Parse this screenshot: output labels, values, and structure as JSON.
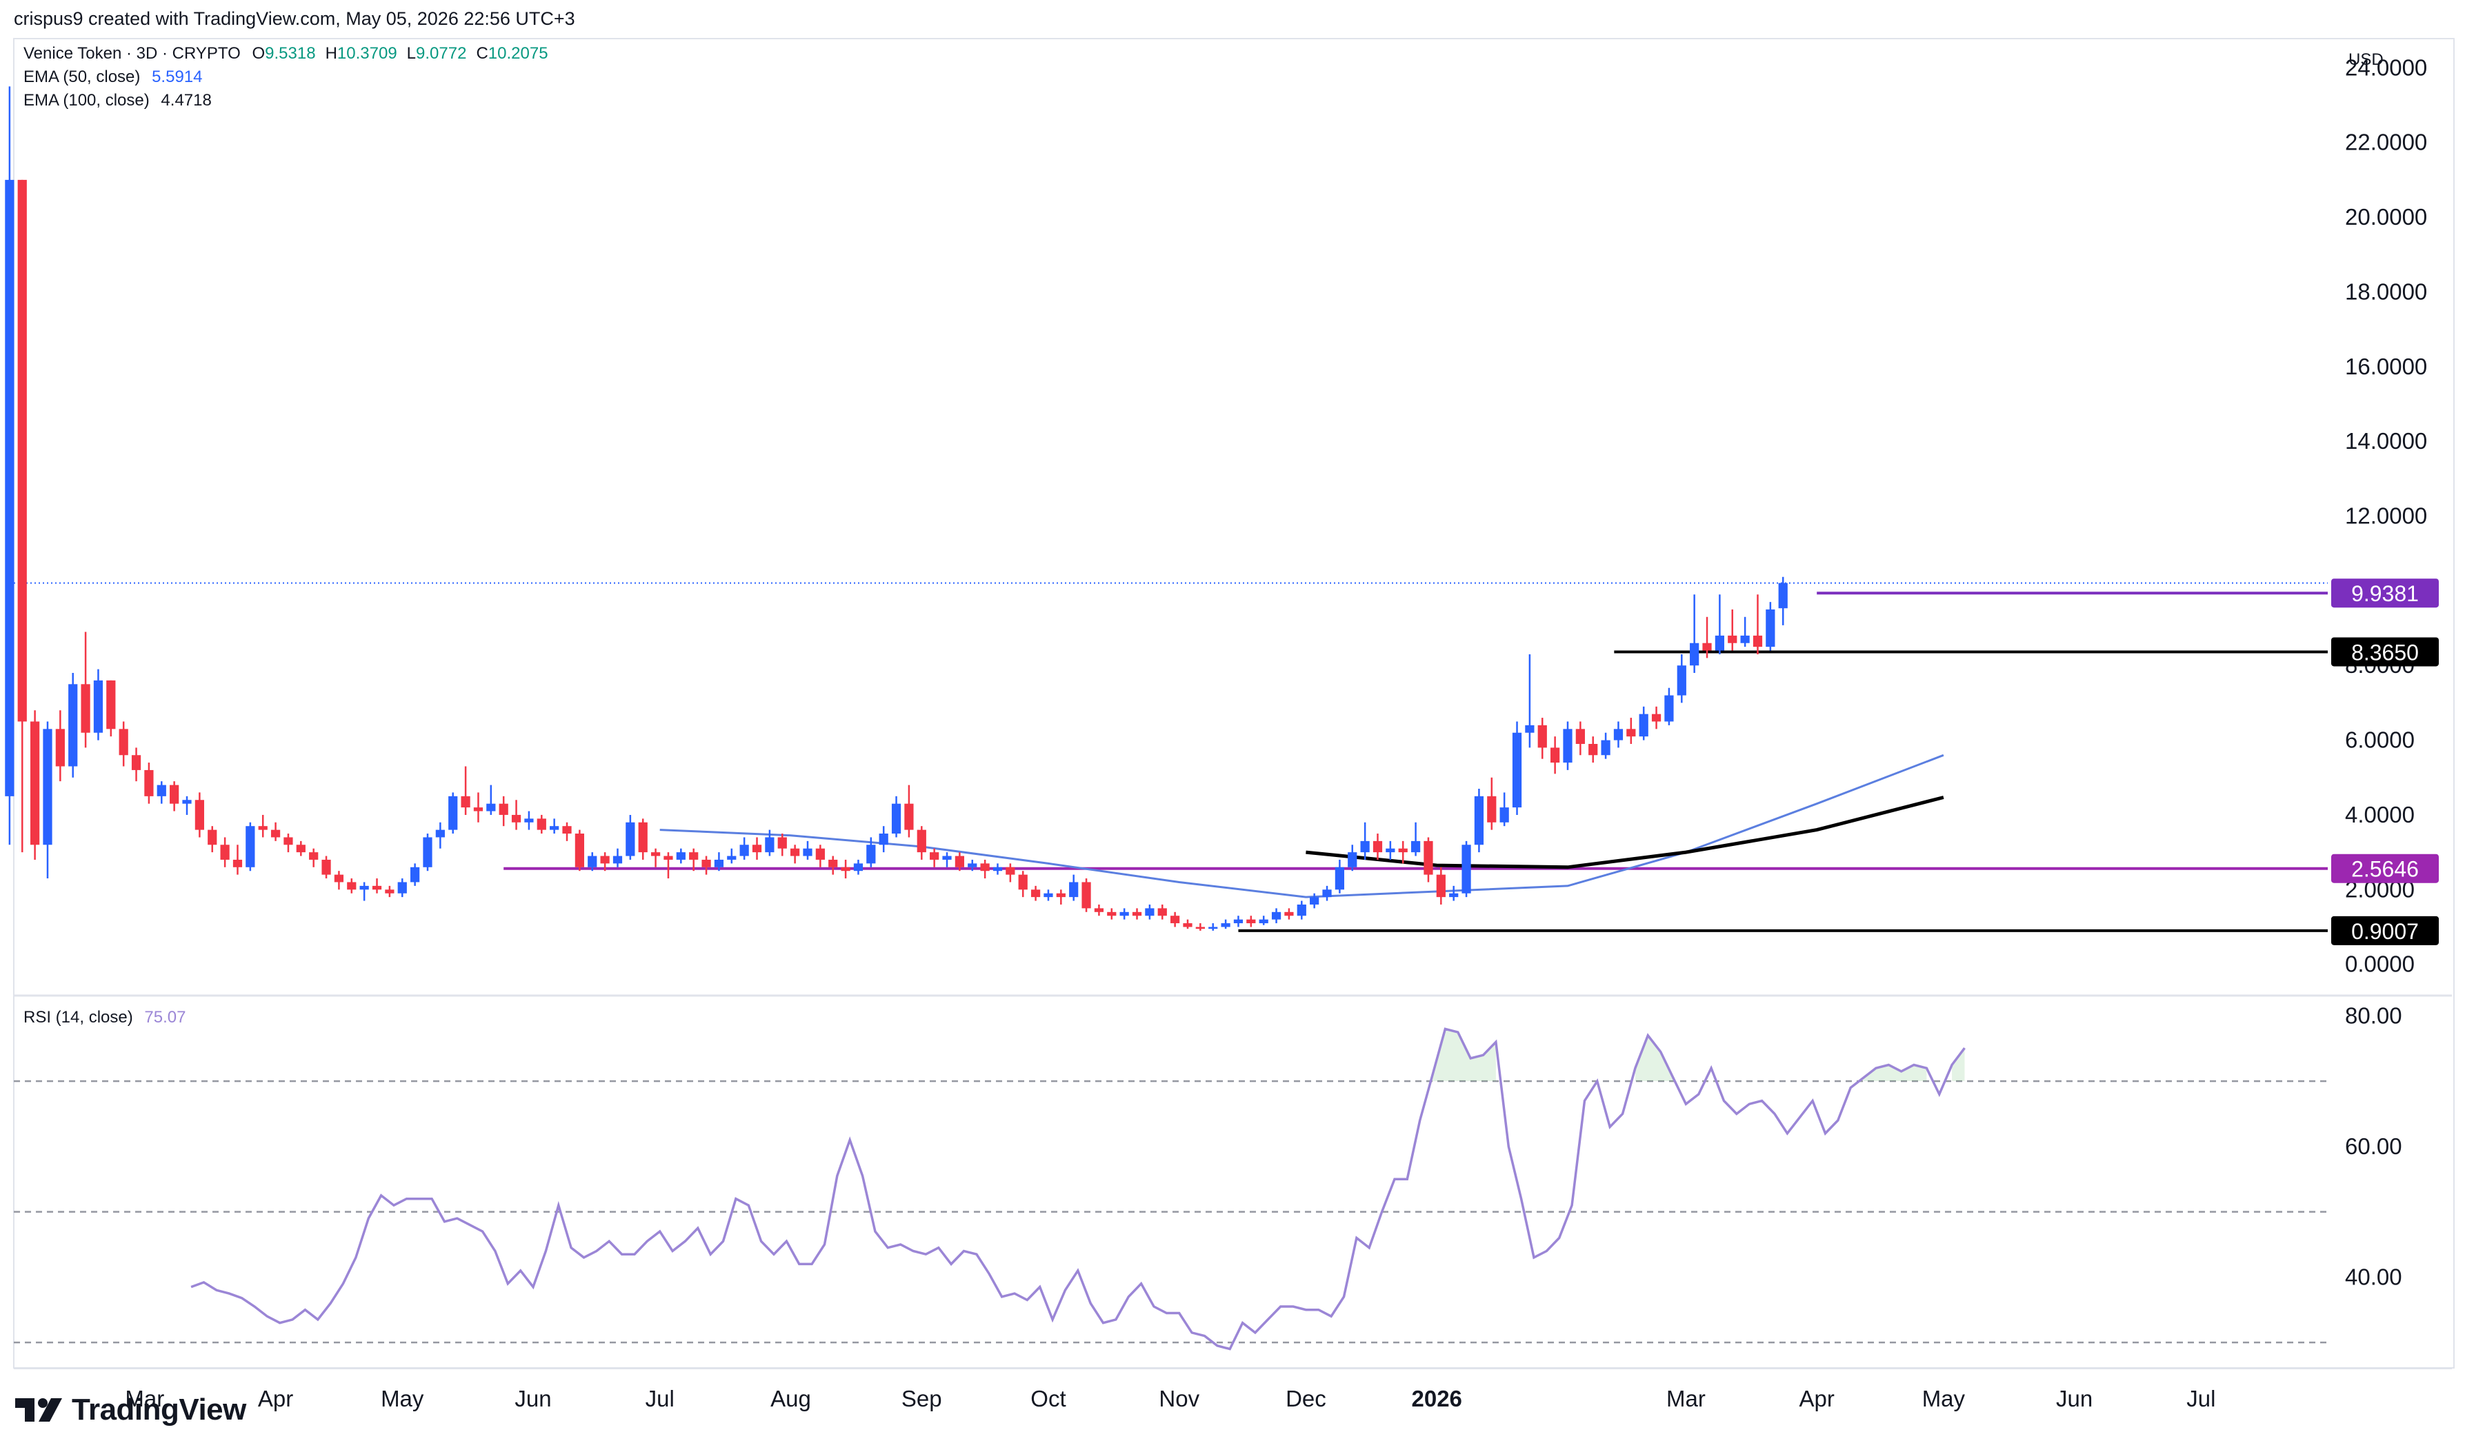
{
  "header": {
    "created_by": "crispus9 created with TradingView.com, May 05, 2026 22:56 UTC+3"
  },
  "legend": {
    "symbol": "Venice Token · 3D · CRYPTO",
    "ohlc": [
      {
        "key": "O",
        "value": "9.5318"
      },
      {
        "key": "H",
        "value": "10.3709"
      },
      {
        "key": "L",
        "value": "9.0772"
      },
      {
        "key": "C",
        "value": "10.2075"
      }
    ],
    "ema50_label": "EMA (50, close)",
    "ema50_value": "5.5914",
    "ema100_label": "EMA (100, close)",
    "ema100_value": "4.4718",
    "rsi_label": "RSI (14, close)",
    "rsi_value": "75.07"
  },
  "colors": {
    "up": "#2962ff",
    "down": "#f23645",
    "ema50": "#5b7fe0",
    "ema100": "#000000",
    "rsi": "#9b86d6",
    "resistance": "#7b2fbe",
    "support_purple": "#9c27b0",
    "support_black": "#000000",
    "ohlc_text": "#089981",
    "ema50_text": "#2962ff"
  },
  "footer": {
    "brand": "TradingView"
  },
  "chart_data": [
    {
      "type": "candlestick",
      "currency": "USD",
      "ylim": [
        -0.8,
        24.8
      ],
      "ytick_labels": [
        "24.0000",
        "22.0000",
        "20.0000",
        "18.0000",
        "16.0000",
        "14.0000",
        "12.0000",
        "10.0000",
        "8.0000",
        "6.0000",
        "4.0000",
        "2.0000",
        "0.0000"
      ],
      "yticks": [
        24,
        22,
        20,
        18,
        16,
        14,
        12,
        10,
        8,
        6,
        4,
        2,
        0
      ],
      "x_labels": [
        "Mar",
        "Apr",
        "May",
        "Jun",
        "Jul",
        "Aug",
        "Sep",
        "Oct",
        "Nov",
        "Dec",
        "2026",
        "Mar",
        "Apr",
        "May",
        "Jun",
        "Jul"
      ],
      "x_label_dates": [
        "2025-03-01",
        "2025-04-01",
        "2025-05-01",
        "2025-06-01",
        "2025-07-01",
        "2025-08-01",
        "2025-09-01",
        "2025-10-01",
        "2025-11-01",
        "2025-12-01",
        "2026-01-01",
        "2026-03-01",
        "2026-04-01",
        "2026-05-01",
        "2026-06-01",
        "2026-07-01"
      ],
      "x_domain": [
        "2025-01-29",
        "2026-07-31"
      ],
      "bold_x_label": "2026",
      "candle_period_days": 3,
      "first_candle_date": "2025-01-28",
      "candles": [
        [
          4.5,
          21.0,
          23.5,
          3.2
        ],
        [
          21.0,
          6.5,
          21.0,
          3.0
        ],
        [
          6.5,
          3.2,
          6.8,
          2.8
        ],
        [
          3.2,
          6.3,
          6.5,
          2.3
        ],
        [
          6.3,
          5.3,
          6.8,
          4.9
        ],
        [
          5.3,
          7.5,
          7.8,
          5.0
        ],
        [
          7.5,
          6.2,
          8.9,
          5.8
        ],
        [
          6.2,
          7.6,
          7.9,
          6.0
        ],
        [
          7.6,
          6.3,
          7.6,
          6.1
        ],
        [
          6.3,
          5.6,
          6.5,
          5.3
        ],
        [
          5.6,
          5.2,
          5.8,
          4.9
        ],
        [
          5.2,
          4.5,
          5.4,
          4.3
        ],
        [
          4.5,
          4.8,
          4.9,
          4.3
        ],
        [
          4.8,
          4.3,
          4.9,
          4.1
        ],
        [
          4.3,
          4.4,
          4.5,
          4.0
        ],
        [
          4.4,
          3.6,
          4.6,
          3.4
        ],
        [
          3.6,
          3.2,
          3.7,
          3.0
        ],
        [
          3.2,
          2.8,
          3.4,
          2.6
        ],
        [
          2.8,
          2.6,
          3.2,
          2.4
        ],
        [
          2.6,
          3.7,
          3.8,
          2.5
        ],
        [
          3.7,
          3.6,
          4.0,
          3.4
        ],
        [
          3.6,
          3.4,
          3.8,
          3.3
        ],
        [
          3.4,
          3.2,
          3.5,
          3.0
        ],
        [
          3.2,
          3.0,
          3.3,
          2.9
        ],
        [
          3.0,
          2.8,
          3.1,
          2.6
        ],
        [
          2.8,
          2.4,
          2.9,
          2.3
        ],
        [
          2.4,
          2.2,
          2.5,
          2.0
        ],
        [
          2.2,
          2.0,
          2.3,
          1.9
        ],
        [
          2.0,
          2.1,
          2.2,
          1.7
        ],
        [
          2.1,
          2.0,
          2.3,
          1.9
        ],
        [
          2.0,
          1.9,
          2.1,
          1.8
        ],
        [
          1.9,
          2.2,
          2.3,
          1.8
        ],
        [
          2.2,
          2.6,
          2.7,
          2.1
        ],
        [
          2.6,
          3.4,
          3.5,
          2.5
        ],
        [
          3.4,
          3.6,
          3.8,
          3.1
        ],
        [
          3.6,
          4.5,
          4.6,
          3.5
        ],
        [
          4.5,
          4.2,
          5.3,
          4.0
        ],
        [
          4.2,
          4.1,
          4.6,
          3.8
        ],
        [
          4.1,
          4.3,
          4.8,
          4.0
        ],
        [
          4.3,
          4.0,
          4.5,
          3.7
        ],
        [
          4.0,
          3.8,
          4.4,
          3.6
        ],
        [
          3.8,
          3.9,
          4.1,
          3.6
        ],
        [
          3.9,
          3.6,
          4.0,
          3.5
        ],
        [
          3.6,
          3.7,
          3.9,
          3.5
        ],
        [
          3.7,
          3.5,
          3.8,
          3.3
        ],
        [
          3.5,
          2.6,
          3.6,
          2.5
        ],
        [
          2.6,
          2.9,
          3.0,
          2.5
        ],
        [
          2.9,
          2.7,
          3.0,
          2.5
        ],
        [
          2.7,
          2.9,
          3.1,
          2.6
        ],
        [
          2.9,
          3.8,
          4.0,
          2.8
        ],
        [
          3.8,
          3.0,
          3.9,
          2.8
        ],
        [
          3.0,
          2.9,
          3.1,
          2.6
        ],
        [
          2.9,
          2.8,
          3.0,
          2.3
        ],
        [
          2.8,
          3.0,
          3.1,
          2.7
        ],
        [
          3.0,
          2.8,
          3.1,
          2.5
        ],
        [
          2.8,
          2.6,
          2.9,
          2.4
        ],
        [
          2.6,
          2.8,
          3.0,
          2.5
        ],
        [
          2.8,
          2.9,
          3.1,
          2.7
        ],
        [
          2.9,
          3.2,
          3.4,
          2.8
        ],
        [
          3.2,
          3.0,
          3.4,
          2.8
        ],
        [
          3.0,
          3.4,
          3.6,
          2.9
        ],
        [
          3.4,
          3.1,
          3.5,
          2.9
        ],
        [
          3.1,
          2.9,
          3.2,
          2.7
        ],
        [
          2.9,
          3.1,
          3.3,
          2.8
        ],
        [
          3.1,
          2.8,
          3.2,
          2.6
        ],
        [
          2.8,
          2.6,
          2.9,
          2.4
        ],
        [
          2.6,
          2.5,
          2.8,
          2.3
        ],
        [
          2.5,
          2.7,
          2.8,
          2.4
        ],
        [
          2.7,
          3.2,
          3.4,
          2.6
        ],
        [
          3.2,
          3.5,
          3.7,
          3.0
        ],
        [
          3.5,
          4.3,
          4.5,
          3.4
        ],
        [
          4.3,
          3.6,
          4.8,
          3.4
        ],
        [
          3.6,
          3.0,
          3.7,
          2.8
        ],
        [
          3.0,
          2.8,
          3.1,
          2.6
        ],
        [
          2.8,
          2.9,
          3.0,
          2.6
        ],
        [
          2.9,
          2.6,
          3.0,
          2.5
        ],
        [
          2.6,
          2.7,
          2.8,
          2.5
        ],
        [
          2.7,
          2.5,
          2.8,
          2.3
        ],
        [
          2.5,
          2.6,
          2.7,
          2.4
        ],
        [
          2.6,
          2.4,
          2.7,
          2.2
        ],
        [
          2.4,
          2.0,
          2.5,
          1.8
        ],
        [
          2.0,
          1.8,
          2.1,
          1.7
        ],
        [
          1.8,
          1.9,
          2.0,
          1.7
        ],
        [
          1.9,
          1.8,
          2.0,
          1.6
        ],
        [
          1.8,
          2.2,
          2.4,
          1.7
        ],
        [
          2.2,
          1.5,
          2.3,
          1.4
        ],
        [
          1.5,
          1.4,
          1.6,
          1.3
        ],
        [
          1.4,
          1.3,
          1.5,
          1.2
        ],
        [
          1.3,
          1.4,
          1.5,
          1.2
        ],
        [
          1.4,
          1.3,
          1.5,
          1.2
        ],
        [
          1.3,
          1.5,
          1.6,
          1.2
        ],
        [
          1.5,
          1.3,
          1.6,
          1.2
        ],
        [
          1.3,
          1.1,
          1.4,
          1.0
        ],
        [
          1.1,
          1.0,
          1.2,
          0.95
        ],
        [
          1.0,
          0.95,
          1.1,
          0.9
        ],
        [
          0.95,
          1.0,
          1.1,
          0.9
        ],
        [
          1.0,
          1.1,
          1.2,
          0.95
        ],
        [
          1.1,
          1.2,
          1.3,
          1.0
        ],
        [
          1.2,
          1.1,
          1.3,
          1.0
        ],
        [
          1.1,
          1.2,
          1.3,
          1.05
        ],
        [
          1.2,
          1.4,
          1.5,
          1.1
        ],
        [
          1.4,
          1.3,
          1.5,
          1.2
        ],
        [
          1.3,
          1.6,
          1.7,
          1.2
        ],
        [
          1.6,
          1.8,
          1.9,
          1.5
        ],
        [
          1.8,
          2.0,
          2.1,
          1.7
        ],
        [
          2.0,
          2.6,
          2.8,
          1.9
        ],
        [
          2.6,
          3.0,
          3.2,
          2.5
        ],
        [
          3.0,
          3.3,
          3.8,
          2.8
        ],
        [
          3.3,
          3.0,
          3.5,
          2.8
        ],
        [
          3.0,
          3.1,
          3.3,
          2.8
        ],
        [
          3.1,
          3.0,
          3.3,
          2.7
        ],
        [
          3.0,
          3.3,
          3.8,
          2.9
        ],
        [
          3.3,
          2.4,
          3.4,
          2.2
        ],
        [
          2.4,
          1.8,
          2.6,
          1.6
        ],
        [
          1.8,
          1.9,
          2.1,
          1.7
        ],
        [
          1.9,
          3.2,
          3.3,
          1.8
        ],
        [
          3.2,
          4.5,
          4.7,
          3.0
        ],
        [
          4.5,
          3.8,
          5.0,
          3.6
        ],
        [
          3.8,
          4.2,
          4.6,
          3.7
        ],
        [
          4.2,
          6.2,
          6.5,
          4.0
        ],
        [
          6.2,
          6.4,
          8.3,
          5.8
        ],
        [
          6.4,
          5.8,
          6.6,
          5.5
        ],
        [
          5.8,
          5.4,
          6.1,
          5.1
        ],
        [
          5.4,
          6.3,
          6.5,
          5.2
        ],
        [
          6.3,
          5.9,
          6.5,
          5.6
        ],
        [
          5.9,
          5.6,
          6.1,
          5.4
        ],
        [
          5.6,
          6.0,
          6.2,
          5.5
        ],
        [
          6.0,
          6.3,
          6.5,
          5.8
        ],
        [
          6.3,
          6.1,
          6.6,
          5.9
        ],
        [
          6.1,
          6.7,
          6.9,
          6.0
        ],
        [
          6.7,
          6.5,
          6.9,
          6.3
        ],
        [
          6.5,
          7.2,
          7.4,
          6.4
        ],
        [
          7.2,
          8.0,
          8.3,
          7.0
        ],
        [
          8.0,
          8.6,
          9.9,
          7.8
        ],
        [
          8.6,
          8.4,
          9.3,
          8.2
        ],
        [
          8.4,
          8.8,
          9.9,
          8.3
        ],
        [
          8.8,
          8.6,
          9.5,
          8.4
        ],
        [
          8.6,
          8.8,
          9.3,
          8.5
        ],
        [
          8.8,
          8.5,
          9.9,
          8.3
        ],
        [
          8.5,
          9.5,
          9.7,
          8.4
        ],
        [
          9.5318,
          10.2075,
          10.3709,
          9.0772
        ]
      ],
      "ema50": [
        [
          2025,
          7,
          1,
          3.6
        ],
        [
          2025,
          8,
          1,
          3.45
        ],
        [
          2025,
          9,
          1,
          3.15
        ],
        [
          2025,
          10,
          1,
          2.7
        ],
        [
          2025,
          11,
          1,
          2.2
        ],
        [
          2025,
          12,
          1,
          1.8
        ],
        [
          2026,
          1,
          1,
          1.95
        ],
        [
          2026,
          2,
          1,
          2.1
        ],
        [
          2026,
          3,
          1,
          3.0
        ],
        [
          2026,
          4,
          1,
          4.3
        ],
        [
          2026,
          5,
          1,
          5.6
        ]
      ],
      "ema100": [
        [
          2025,
          12,
          1,
          3.0
        ],
        [
          2026,
          1,
          1,
          2.65
        ],
        [
          2026,
          2,
          1,
          2.6
        ],
        [
          2026,
          3,
          1,
          3.0
        ],
        [
          2026,
          4,
          1,
          3.6
        ],
        [
          2026,
          5,
          1,
          4.47
        ]
      ],
      "level_lines": [
        {
          "value": 9.9381,
          "label": "9.9381",
          "color": "#7b2fbe",
          "start": "2026-04-01"
        },
        {
          "value": 8.365,
          "label": "8.3650",
          "color": "#000000",
          "start": "2026-02-12"
        },
        {
          "value": 2.5646,
          "label": "2.5646",
          "color": "#9c27b0",
          "start": "2025-05-25"
        },
        {
          "value": 0.9007,
          "label": "0.9007",
          "color": "#000000",
          "start": "2025-11-15"
        }
      ],
      "last_price": 10.2075
    },
    {
      "type": "line",
      "name": "RSI (14, close)",
      "ylim": [
        26,
        83
      ],
      "ytick_labels": [
        "80.00",
        "60.00",
        "40.00"
      ],
      "yticks": [
        80,
        60,
        40
      ],
      "bands": [
        70,
        50,
        30
      ],
      "rsi": [
        38.5,
        39.2,
        38.0,
        37.5,
        36.8,
        35.5,
        34.0,
        33.0,
        33.5,
        35.0,
        33.5,
        36.0,
        39.0,
        43.0,
        49.0,
        52.5,
        51.0,
        52.0,
        52.0,
        52.0,
        48.5,
        49.0,
        48.0,
        47.0,
        44.0,
        39.0,
        41.0,
        38.5,
        44.0,
        51.0,
        44.5,
        43.0,
        44.0,
        45.5,
        43.5,
        43.5,
        45.5,
        47.0,
        44.0,
        45.5,
        47.5,
        43.5,
        45.5,
        52.0,
        51.0,
        45.5,
        43.5,
        45.5,
        42.0,
        42.0,
        45.0,
        55.5,
        61.0,
        55.5,
        47.0,
        44.5,
        45.0,
        44.0,
        43.5,
        44.5,
        42.0,
        44.0,
        43.5,
        40.5,
        37.0,
        37.5,
        36.5,
        38.5,
        33.5,
        38.0,
        41.0,
        36.0,
        33.0,
        33.5,
        37.0,
        39.0,
        35.5,
        34.5,
        34.5,
        31.5,
        31.0,
        29.5,
        29.0,
        33.0,
        31.5,
        33.5,
        35.5,
        35.5,
        35.0,
        35.0,
        34.0,
        37.0,
        46.0,
        44.5,
        50.0,
        55.0,
        55.0,
        64.0,
        71.0,
        78.0,
        77.5,
        73.5,
        74.0,
        76.0,
        60.0,
        52.0,
        43.0,
        44.0,
        46.0,
        51.0,
        67.0,
        70.0,
        63.0,
        65.0,
        72.0,
        77.0,
        74.5,
        70.5,
        66.5,
        68.0,
        72.0,
        67.0,
        65.0,
        66.5,
        67.0,
        65.0,
        62.0,
        64.5,
        67.0,
        62.0,
        64.0,
        69.0,
        70.5,
        72.0,
        72.5,
        71.5,
        72.5,
        72.0,
        68.0,
        72.5,
        75.07
      ],
      "rsi_start_date": "2025-03-12",
      "rsi_period_days": 3
    }
  ]
}
